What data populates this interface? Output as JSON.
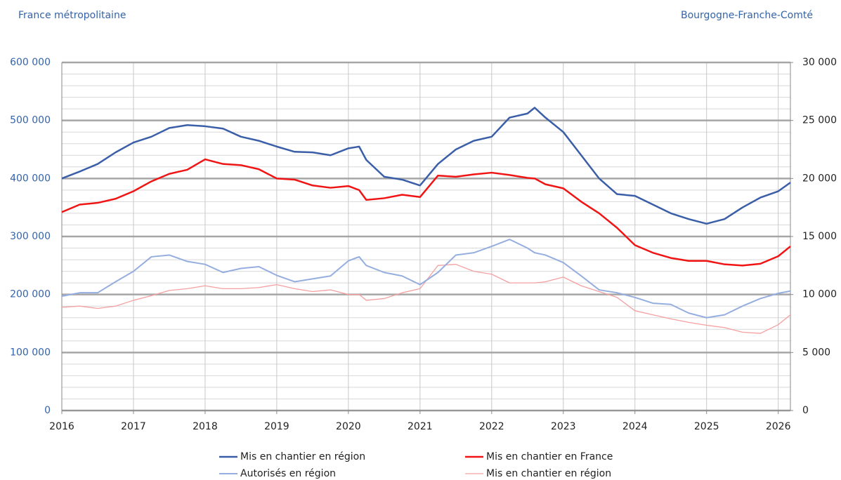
{
  "header": {
    "left": "France métropolitaine",
    "right": "Bourgogne-Franche-Comté"
  },
  "chart_data": {
    "type": "line",
    "x": [
      2016,
      2016.25,
      2016.5,
      2016.75,
      2017,
      2017.25,
      2017.5,
      2017.75,
      2018,
      2018.25,
      2018.5,
      2018.75,
      2019,
      2019.25,
      2019.5,
      2019.75,
      2020,
      2020.15,
      2020.25,
      2020.5,
      2020.75,
      2021,
      2021.25,
      2021.5,
      2021.75,
      2022,
      2022.25,
      2022.5,
      2022.6,
      2022.75,
      2023,
      2023.25,
      2023.5,
      2023.75,
      2024,
      2024.25,
      2024.5,
      2024.75,
      2025,
      2025.25,
      2025.5,
      2025.75,
      2026,
      2026.17
    ],
    "series": [
      {
        "name": "Mis en chantier en région",
        "color": "#3a5ea8",
        "axis": "y2",
        "values": [
          20000,
          20600,
          21250,
          22250,
          23100,
          23600,
          24350,
          24600,
          24500,
          24300,
          23600,
          23250,
          22750,
          22300,
          22250,
          22000,
          22600,
          22750,
          21600,
          20150,
          19900,
          19400,
          21250,
          22500,
          23250,
          23600,
          25250,
          25600,
          26100,
          25250,
          24000,
          22000,
          20000,
          18650,
          18500,
          17750,
          17000,
          16500,
          16100,
          16500,
          17500,
          18350,
          18900,
          19650
        ]
      },
      {
        "name": "Mis en chantier en France",
        "color": "#f01414",
        "values": [
          342000,
          355000,
          358000,
          365000,
          378000,
          395000,
          408000,
          415000,
          433000,
          425000,
          423000,
          416000,
          400000,
          398000,
          388000,
          384000,
          387000,
          380000,
          363000,
          366000,
          372000,
          368000,
          405000,
          403000,
          407000,
          410000,
          406000,
          401000,
          400000,
          390000,
          383000,
          360000,
          340000,
          315000,
          285000,
          272000,
          263000,
          258000,
          258000,
          252000,
          250000,
          253000,
          266000,
          283000
        ]
      },
      {
        "name": "Autorisés en région",
        "color": "#95aedf",
        "axis": "y2",
        "values": [
          9850,
          10150,
          10150,
          11100,
          12000,
          13250,
          13400,
          12850,
          12600,
          11900,
          12250,
          12400,
          11650,
          11100,
          11350,
          11600,
          12900,
          13250,
          12500,
          11900,
          11600,
          10850,
          11900,
          13400,
          13600,
          14150,
          14750,
          14000,
          13600,
          13400,
          12750,
          11600,
          10400,
          10150,
          9750,
          9250,
          9150,
          8400,
          8000,
          8250,
          9000,
          9650,
          10100,
          10300
        ]
      },
      {
        "name": "Mis en chantier en région",
        "color": "#f5a0a0",
        "axis": "y2",
        "values": [
          8900,
          9000,
          8800,
          9000,
          9500,
          9900,
          10350,
          10500,
          10750,
          10500,
          10500,
          10600,
          10850,
          10500,
          10250,
          10400,
          10000,
          10000,
          9500,
          9650,
          10150,
          10500,
          12500,
          12600,
          12000,
          11750,
          11000,
          11000,
          11000,
          11100,
          11500,
          10750,
          10250,
          9750,
          8600,
          8250,
          7900,
          7600,
          7350,
          7150,
          6750,
          6650,
          7400,
          8250
        ]
      }
    ],
    "xlim": [
      2016,
      2026.17
    ],
    "xticks": [
      2016,
      2017,
      2018,
      2019,
      2020,
      2021,
      2022,
      2023,
      2024,
      2025,
      2026
    ],
    "ylim": [
      0,
      600000
    ],
    "yticks": [
      0,
      {
        "value": 100000,
        "label": "100 000"
      },
      {
        "value": 200000,
        "label": "200 000"
      },
      {
        "value": 300000,
        "label": "300 000"
      },
      {
        "value": 400000,
        "label": "400 000"
      },
      {
        "value": 500000,
        "label": "500 000"
      },
      {
        "value": 600000,
        "label": "600 000"
      }
    ],
    "yminorticks": [
      20000,
      40000,
      60000,
      80000,
      120000,
      140000,
      160000,
      180000,
      220000,
      240000,
      260000,
      280000,
      320000,
      340000,
      360000,
      380000,
      420000,
      440000,
      460000,
      480000,
      520000,
      540000,
      560000,
      580000
    ],
    "y2lim": [
      0,
      30000
    ],
    "y2ticks": [
      0,
      {
        "value": 5000,
        "label": "5 000"
      },
      {
        "value": 10000,
        "label": "10 000"
      },
      {
        "value": 15000,
        "label": "15 000"
      },
      {
        "value": 20000,
        "label": "20 000"
      },
      {
        "value": 25000,
        "label": "25 000"
      },
      {
        "value": 30000,
        "label": "30 000"
      }
    ],
    "grid": true
  }
}
